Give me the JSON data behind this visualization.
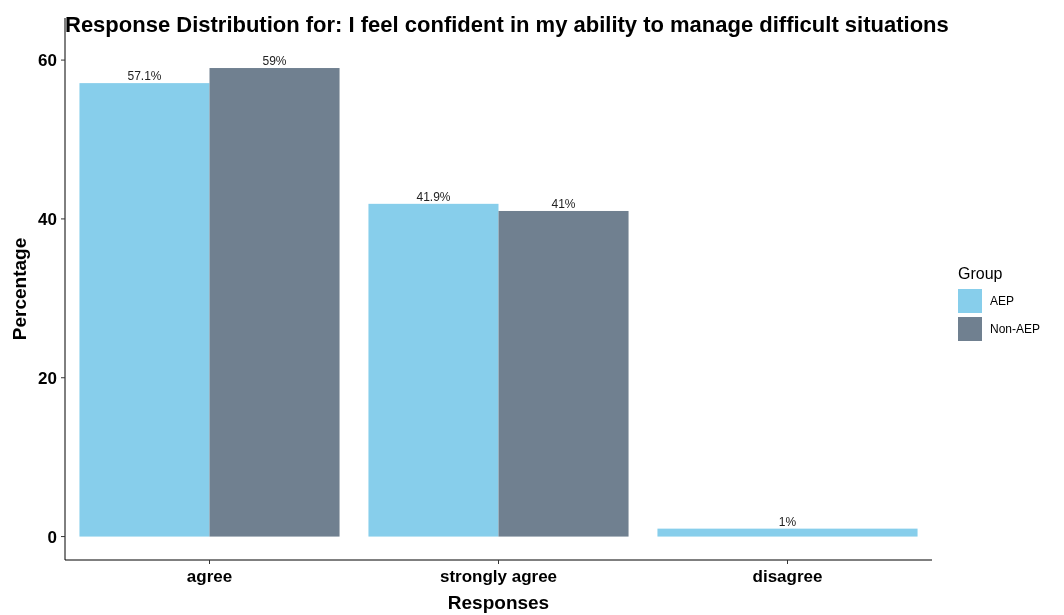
{
  "chart_data": {
    "type": "bar",
    "title": "Response Distribution for: I feel confident in my ability to manage difficult situations",
    "xlabel": "Responses",
    "ylabel": "Percentage",
    "legend_title": "Group",
    "categories": [
      "agree",
      "strongly agree",
      "disagree"
    ],
    "series": [
      {
        "name": "AEP",
        "color": "#87ceeb",
        "values": [
          57.1,
          41.9,
          1
        ],
        "value_labels": [
          "57.1%",
          "41.9%",
          "1%"
        ]
      },
      {
        "name": "Non-AEP",
        "color": "#708090",
        "values": [
          59,
          41,
          null
        ],
        "value_labels": [
          "59%",
          "41%",
          null
        ]
      }
    ],
    "ylim": [
      -2.95,
      65.3
    ],
    "yticks": [
      0,
      20,
      40,
      60
    ],
    "grid": false,
    "legend": "right"
  }
}
